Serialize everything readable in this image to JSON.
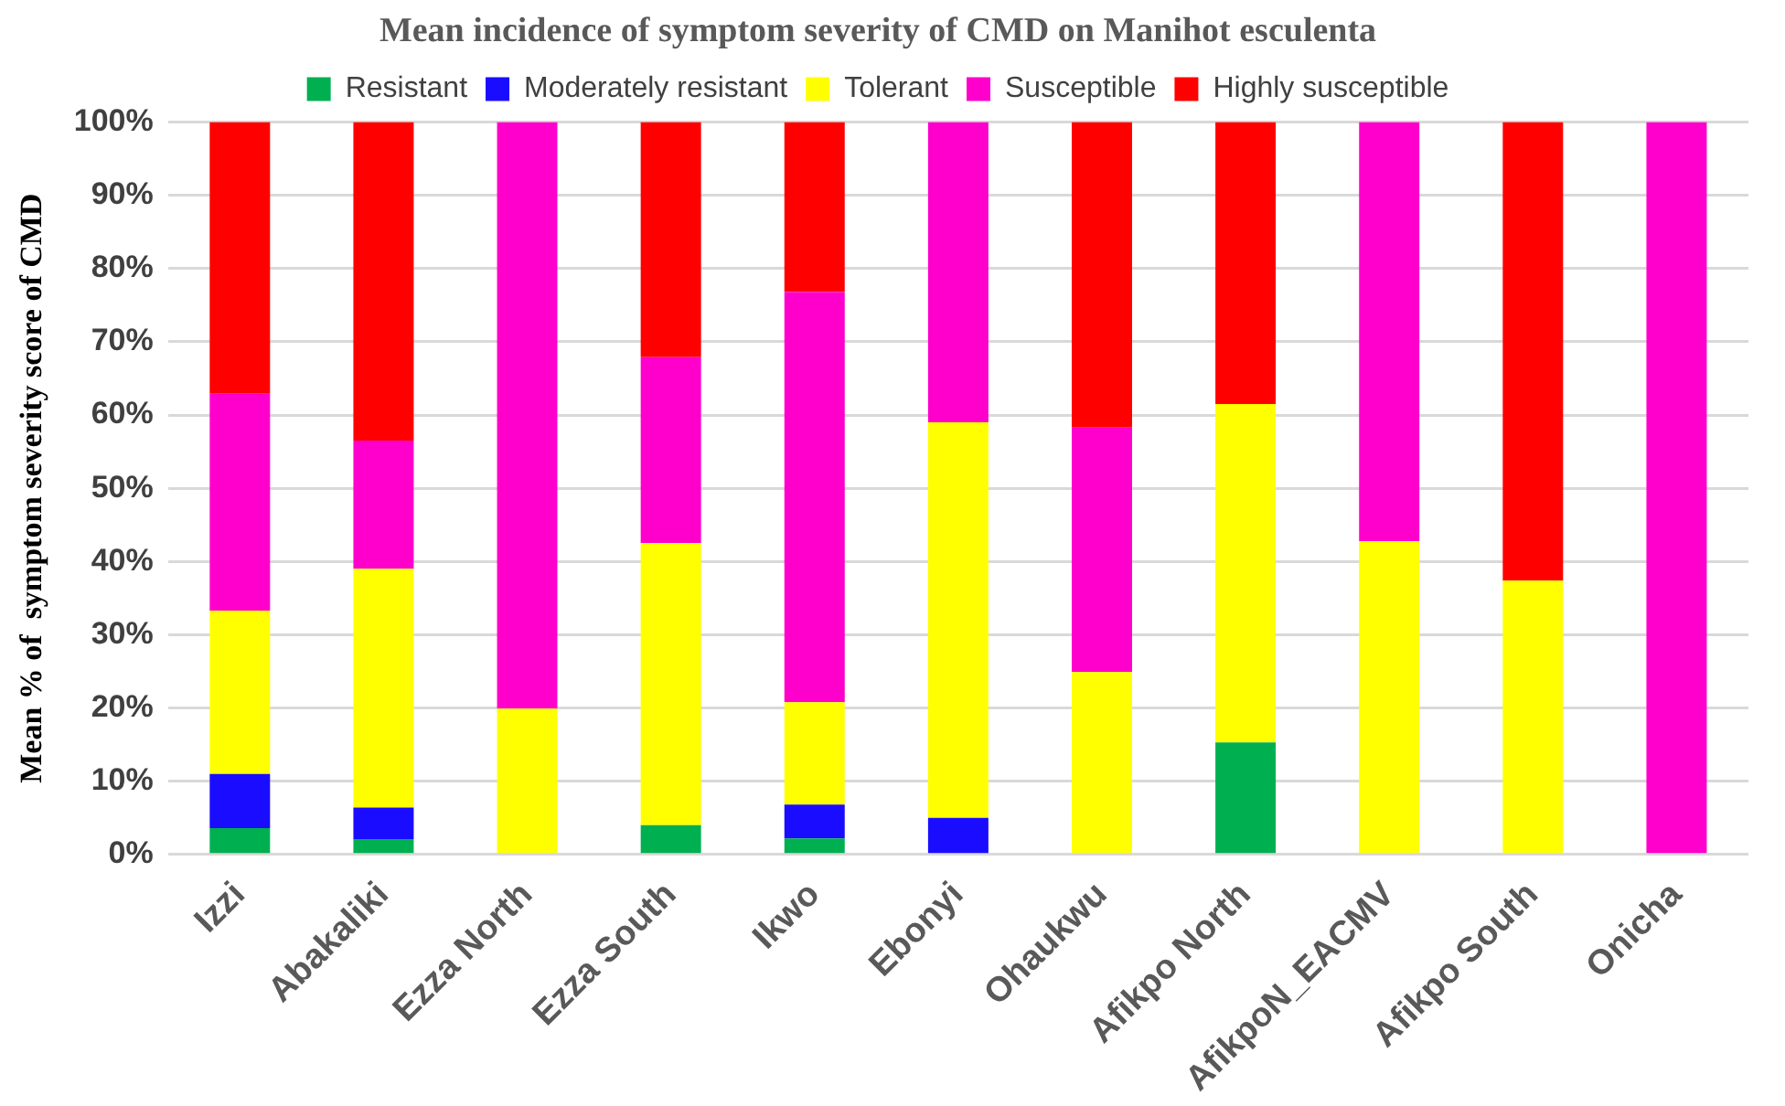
{
  "chart_data": {
    "type": "bar",
    "stacked": true,
    "title": "Mean incidence of symptom severity of CMD on Manihot esculenta",
    "ylabel": "Mean % of  symptom severity score of CMD",
    "categories": [
      "Izzi",
      "Abakaliki",
      "Ezza North",
      "Ezza South",
      "Ikwo",
      "Ebonyi",
      "Ohaukwu",
      "Afikpo North",
      "AfikpoN_EACMV",
      "Afikpo South",
      "Onicha"
    ],
    "series": [
      {
        "name": "Resistant",
        "color": "#00b050",
        "values": [
          3.6,
          2.1,
          0,
          4.0,
          2.2,
          0,
          0,
          15.3,
          0,
          0,
          0
        ]
      },
      {
        "name": "Moderately resistant",
        "color": "#1a0dff",
        "values": [
          7.4,
          4.3,
          0,
          0,
          4.6,
          5.0,
          0,
          0,
          0,
          0,
          0
        ]
      },
      {
        "name": "Tolerant",
        "color": "#ffff00",
        "values": [
          22.3,
          32.6,
          19.9,
          38.5,
          14.0,
          54.0,
          24.9,
          46.2,
          42.8,
          37.4,
          0
        ]
      },
      {
        "name": "Susceptible",
        "color": "#ff00cc",
        "values": [
          29.6,
          17.5,
          80.1,
          25.4,
          56.0,
          41.0,
          33.4,
          0,
          57.2,
          0,
          100
        ]
      },
      {
        "name": "Highly susceptible",
        "color": "#ff0000",
        "values": [
          37.1,
          43.5,
          0,
          32.1,
          23.2,
          0,
          41.7,
          38.5,
          0,
          62.6,
          0
        ]
      }
    ],
    "ylim": [
      0,
      100
    ],
    "yticks": [
      {
        "value": 0,
        "label": "0%"
      },
      {
        "value": 10,
        "label": "10%"
      },
      {
        "value": 20,
        "label": "20%"
      },
      {
        "value": 30,
        "label": "30%"
      },
      {
        "value": 40,
        "label": "40%"
      },
      {
        "value": 50,
        "label": "50%"
      },
      {
        "value": 60,
        "label": "60%"
      },
      {
        "value": 70,
        "label": "70%"
      },
      {
        "value": 80,
        "label": "80%"
      },
      {
        "value": 90,
        "label": "90%"
      },
      {
        "value": 100,
        "label": "100%"
      }
    ],
    "grid": "y",
    "legend": "top"
  }
}
